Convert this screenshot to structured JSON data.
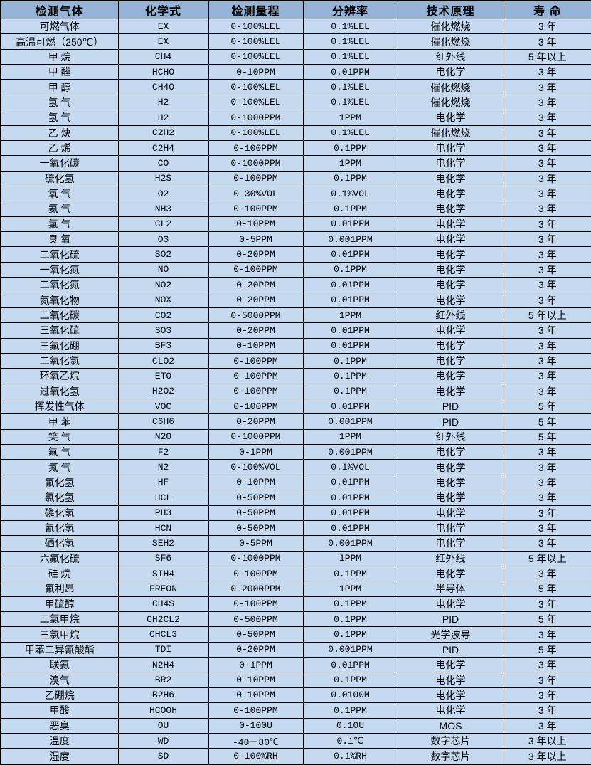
{
  "colors": {
    "header_bg": "#95b3d7",
    "row_bg": "#c5d9f1",
    "border": "#000000",
    "text": "#000000"
  },
  "table": {
    "columns": [
      {
        "key": "gas",
        "label": "检测气体"
      },
      {
        "key": "formula",
        "label": "化学式"
      },
      {
        "key": "range",
        "label": "检测量程"
      },
      {
        "key": "resolution",
        "label": "分辨率"
      },
      {
        "key": "principle",
        "label": "技术原理"
      },
      {
        "key": "lifespan",
        "label": "寿 命"
      }
    ],
    "rows": [
      [
        "可燃气体",
        "EX",
        "0-100%LEL",
        "0.1%LEL",
        "催化燃烧",
        "3 年"
      ],
      [
        "高温可燃（250℃）",
        "EX",
        "0-100%LEL",
        "0.1%LEL",
        "催化燃烧",
        "3 年"
      ],
      [
        "甲 烷",
        "CH4",
        "0-100%LEL",
        "0.1%LEL",
        "红外线",
        "5 年以上"
      ],
      [
        "甲 醛",
        "HCHO",
        "0-10PPM",
        "0.01PPM",
        "电化学",
        "3 年"
      ],
      [
        "甲 醇",
        "CH4O",
        "0-100%LEL",
        "0.1%LEL",
        "催化燃烧",
        "3 年"
      ],
      [
        "氢 气",
        "H2",
        "0-100%LEL",
        "0.1%LEL",
        "催化燃烧",
        "3 年"
      ],
      [
        "氢 气",
        "H2",
        "0-1000PPM",
        "1PPM",
        "电化学",
        "3 年"
      ],
      [
        "乙 炔",
        "C2H2",
        "0-100%LEL",
        "0.1%LEL",
        "催化燃烧",
        "3 年"
      ],
      [
        "乙 烯",
        "C2H4",
        "0-100PPM",
        "0.1PPM",
        "电化学",
        "3 年"
      ],
      [
        "一氧化碳",
        "CO",
        "0-1000PPM",
        "1PPM",
        "电化学",
        "3 年"
      ],
      [
        "硫化氢",
        "H2S",
        "0-100PPM",
        "0.1PPM",
        "电化学",
        "3 年"
      ],
      [
        "氧 气",
        "O2",
        "0-30%VOL",
        "0.1%VOL",
        "电化学",
        "3 年"
      ],
      [
        "氨 气",
        "NH3",
        "0-100PPM",
        "0.1PPM",
        "电化学",
        "3 年"
      ],
      [
        "氯 气",
        "CL2",
        "0-10PPM",
        "0.01PPM",
        "电化学",
        "3 年"
      ],
      [
        "臭 氧",
        "O3",
        "0-5PPM",
        "0.001PPM",
        "电化学",
        "3 年"
      ],
      [
        "二氧化硫",
        "SO2",
        "0-20PPM",
        "0.01PPM",
        "电化学",
        "3 年"
      ],
      [
        "一氧化氮",
        "NO",
        "0-100PPM",
        "0.1PPM",
        "电化学",
        "3 年"
      ],
      [
        "二氧化氮",
        "NO2",
        "0-20PPM",
        "0.01PPM",
        "电化学",
        "3 年"
      ],
      [
        "氮氧化物",
        "NOX",
        "0-20PPM",
        "0.01PPM",
        "电化学",
        "3 年"
      ],
      [
        "二氧化碳",
        "CO2",
        "0-5000PPM",
        "1PPM",
        "红外线",
        "5 年以上"
      ],
      [
        "三氧化硫",
        "SO3",
        "0-20PPM",
        "0.01PPM",
        "电化学",
        "3 年"
      ],
      [
        "三氟化硼",
        "BF3",
        "0-10PPM",
        "0.01PPM",
        "电化学",
        "3 年"
      ],
      [
        "二氧化氯",
        "CLO2",
        "0-100PPM",
        "0.1PPM",
        "电化学",
        "3 年"
      ],
      [
        "环氧乙烷",
        "ETO",
        "0-100PPM",
        "0.1PPM",
        "电化学",
        "3 年"
      ],
      [
        "过氧化氢",
        "H2O2",
        "0-100PPM",
        "0.1PPM",
        "电化学",
        "3 年"
      ],
      [
        "挥发性气体",
        "VOC",
        "0-100PPM",
        "0.01PPM",
        "PID",
        "5 年"
      ],
      [
        "甲 苯",
        "C6H6",
        "0-20PPM",
        "0.001PPM",
        "PID",
        "5 年"
      ],
      [
        "笑 气",
        "N2O",
        "0-1000PPM",
        "1PPM",
        "红外线",
        "5 年"
      ],
      [
        "氟 气",
        "F2",
        "0-1PPM",
        "0.001PPM",
        "电化学",
        "3 年"
      ],
      [
        "氮 气",
        "N2",
        "0-100%VOL",
        "0.1%VOL",
        "电化学",
        "3 年"
      ],
      [
        "氟化氢",
        "HF",
        "0-10PPM",
        "0.01PPM",
        "电化学",
        "3 年"
      ],
      [
        "氯化氢",
        "HCL",
        "0-50PPM",
        "0.01PPM",
        "电化学",
        "3 年"
      ],
      [
        "磷化氢",
        "PH3",
        "0-50PPM",
        "0.01PPM",
        "电化学",
        "3 年"
      ],
      [
        "氰化氢",
        "HCN",
        "0-50PPM",
        "0.01PPM",
        "电化学",
        "3 年"
      ],
      [
        "硒化氢",
        "SEH2",
        "0-5PPM",
        "0.001PPM",
        "电化学",
        "3 年"
      ],
      [
        "六氟化硫",
        "SF6",
        "0-1000PPM",
        "1PPM",
        "红外线",
        "5 年以上"
      ],
      [
        "硅 烷",
        "SIH4",
        "0-100PPM",
        "0.1PPM",
        "电化学",
        "3 年"
      ],
      [
        "氟利昂",
        "FREON",
        "0-2000PPM",
        "1PPM",
        "半导体",
        "5 年"
      ],
      [
        "甲硫醇",
        "CH4S",
        "0-100PPM",
        "0.1PPM",
        "电化学",
        "3 年"
      ],
      [
        "二氯甲烷",
        "CH2CL2",
        "0-500PPM",
        "0.1PPM",
        "PID",
        "5 年"
      ],
      [
        "三氯甲烷",
        "CHCL3",
        "0-50PPM",
        "0.1PPM",
        "光学波导",
        "3 年"
      ],
      [
        "甲苯二异氰酸酯",
        "TDI",
        "0-20PPM",
        "0.001PPM",
        "PID",
        "5 年"
      ],
      [
        "联氨",
        "N2H4",
        "0-1PPM",
        "0.01PPM",
        "电化学",
        "3 年"
      ],
      [
        "溴气",
        "BR2",
        "0-10PPM",
        "0.1PPM",
        "电化学",
        "3 年"
      ],
      [
        "乙硼烷",
        "B2H6",
        "0-10PPM",
        "0.0100M",
        "电化学",
        "3 年"
      ],
      [
        "甲酸",
        "HCOOH",
        "0-100PPM",
        "0.1PPM",
        "电化学",
        "3 年"
      ],
      [
        "恶臭",
        "OU",
        "0-100U",
        "0.10U",
        "MOS",
        "3 年"
      ],
      [
        "温度",
        "WD",
        "-40－80℃",
        "0.1℃",
        "数字芯片",
        "3 年以上"
      ],
      [
        "湿度",
        "SD",
        "0-100%RH",
        "0.1%RH",
        "数字芯片",
        "3 年以上"
      ]
    ]
  }
}
